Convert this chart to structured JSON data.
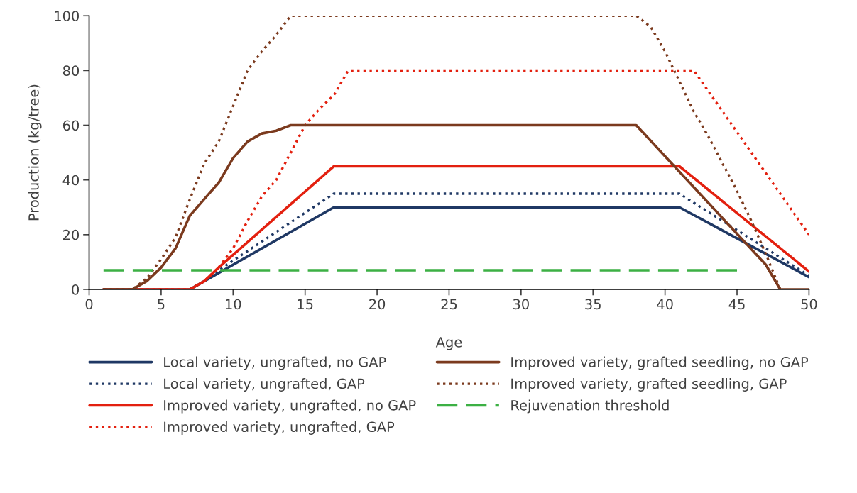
{
  "chart_data": {
    "type": "line",
    "xlabel": "Age",
    "ylabel": "Production (kg/tree)",
    "xlim": [
      0,
      50
    ],
    "xticks": [
      0,
      5,
      10,
      15,
      20,
      25,
      30,
      35,
      40,
      45,
      50
    ],
    "ylim": [
      0,
      100
    ],
    "yticks": [
      0,
      20,
      40,
      60,
      80,
      100
    ],
    "grid": false,
    "legend": "bottom",
    "marker": "none",
    "series": [
      {
        "name": "Local variety, ungrafted, no GAP",
        "color": "#1f3864",
        "line_style": "solid",
        "x": [
          1,
          7,
          8,
          17,
          41,
          50
        ],
        "values": [
          0,
          0,
          3,
          30,
          30,
          4.5
        ]
      },
      {
        "name": "Local variety, ungrafted, GAP",
        "color": "#1f3864",
        "line_style": "dotted",
        "x": [
          1,
          7,
          8,
          9,
          17,
          41,
          50
        ],
        "values": [
          0,
          0,
          3,
          7,
          35,
          35,
          5
        ]
      },
      {
        "name": "Improved variety, ungrafted, no GAP",
        "color": "#e3200f",
        "line_style": "solid",
        "x": [
          1,
          7,
          8,
          9,
          17,
          41,
          50
        ],
        "values": [
          0,
          0,
          3,
          8,
          45,
          45,
          6.5
        ]
      },
      {
        "name": "Improved variety, ungrafted, GAP",
        "color": "#e3200f",
        "line_style": "dotted",
        "x": [
          1,
          7,
          8,
          9,
          10,
          11,
          12,
          13,
          14,
          15,
          16,
          17,
          18,
          42,
          50
        ],
        "values": [
          0,
          0,
          3,
          8,
          15,
          25,
          34,
          40,
          50,
          60,
          66,
          71,
          80,
          80,
          20
        ]
      },
      {
        "name": "Improved variety, grafted seedling, no GAP",
        "color": "#7b3a1e",
        "line_style": "solid",
        "x": [
          1,
          3,
          4,
          5,
          6,
          7,
          8,
          9,
          10,
          11,
          12,
          13,
          14,
          38,
          47,
          48,
          50
        ],
        "values": [
          0,
          0,
          3,
          8,
          15,
          27,
          33,
          39,
          48,
          54,
          57,
          58,
          60,
          60,
          9,
          0,
          0
        ]
      },
      {
        "name": "Improved variety, grafted seedling, GAP",
        "color": "#7b3a1e",
        "line_style": "dotted",
        "x": [
          1,
          3,
          4,
          5,
          6,
          7,
          8,
          9,
          10,
          11,
          12,
          13,
          14,
          38,
          39,
          40,
          41,
          42,
          43,
          44,
          45,
          46,
          47,
          48
        ],
        "values": [
          0,
          0,
          4,
          11,
          19,
          33,
          46,
          54,
          67,
          80,
          87,
          93,
          100,
          100,
          96,
          87,
          76,
          65,
          56,
          46,
          36,
          25,
          13,
          0
        ]
      },
      {
        "name": "Rejuvenation threshold",
        "color": "#3cb044",
        "line_style": "dashed",
        "x": [
          1,
          45
        ],
        "values": [
          7,
          7
        ]
      }
    ]
  }
}
